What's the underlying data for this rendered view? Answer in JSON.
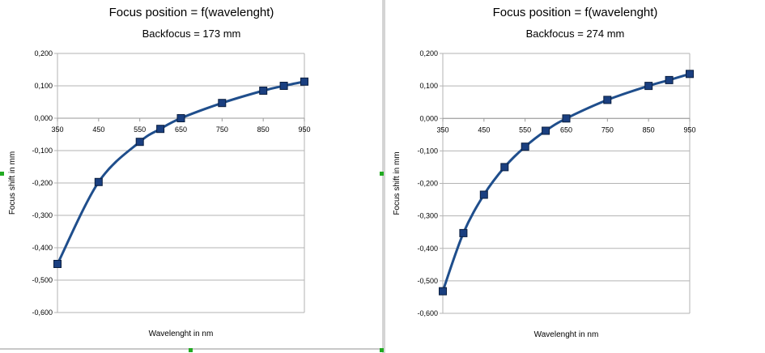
{
  "chart_data": [
    {
      "type": "line",
      "title": "Focus position = f(wavelenght)",
      "subtitle": "Backfocus = 173 mm",
      "xlabel": "Wavelenght in nm",
      "ylabel": "Focus shift in mm",
      "x_ticks": [
        "350",
        "450",
        "550",
        "650",
        "750",
        "850",
        "950"
      ],
      "y_ticks": [
        "0,200",
        "0,100",
        "0,000",
        "-0,100",
        "-0,200",
        "-0,300",
        "-0,400",
        "-0,500",
        "-0,600"
      ],
      "xlim": [
        350,
        950
      ],
      "ylim": [
        -0.6,
        0.2
      ],
      "grid": true,
      "legend": "none",
      "line_color": "#1f4e8c",
      "marker_color": "#1a3f80",
      "series": [
        {
          "x": [
            350,
            450,
            550,
            600,
            650,
            750,
            850,
            900,
            950
          ],
          "y": [
            -0.45,
            -0.197,
            -0.073,
            -0.033,
            0.0,
            0.047,
            0.085,
            0.1,
            0.113
          ]
        }
      ]
    },
    {
      "type": "line",
      "title": "Focus position = f(wavelenght)",
      "subtitle": "Backfocus = 274 mm",
      "xlabel": "Wavelenght in nm",
      "ylabel": "Focus shift in mm",
      "x_ticks": [
        "350",
        "450",
        "550",
        "650",
        "750",
        "850",
        "950"
      ],
      "y_ticks": [
        "0,200",
        "0,100",
        "0,000",
        "-0,100",
        "-0,200",
        "-0,300",
        "-0,400",
        "-0,500",
        "-0,600"
      ],
      "xlim": [
        350,
        950
      ],
      "ylim": [
        -0.6,
        0.2
      ],
      "grid": true,
      "legend": "none",
      "line_color": "#1f4e8c",
      "marker_color": "#1a3f80",
      "series": [
        {
          "x": [
            350,
            400,
            450,
            500,
            550,
            600,
            650,
            750,
            850,
            900,
            950
          ],
          "y": [
            -0.532,
            -0.353,
            -0.235,
            -0.15,
            -0.087,
            -0.038,
            0.0,
            0.057,
            0.1,
            0.118,
            0.137
          ]
        }
      ]
    }
  ]
}
